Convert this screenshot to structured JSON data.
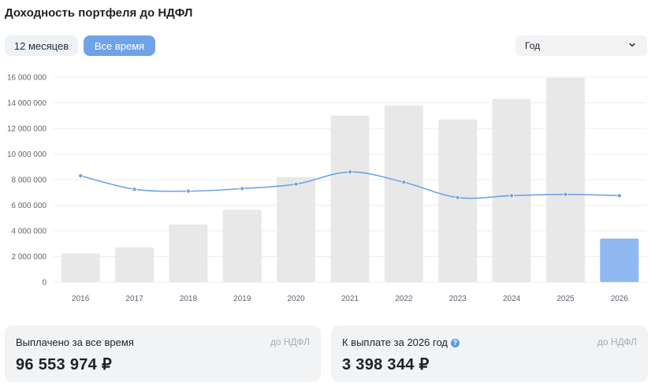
{
  "header": {
    "title": "Доходность портфеля до НДФЛ"
  },
  "period_tabs": [
    {
      "label": "12 месяцев",
      "active": false
    },
    {
      "label": "Все время",
      "active": true
    }
  ],
  "group_select": {
    "value": "Год",
    "icon": "chevron-down-icon"
  },
  "colors": {
    "bar": "#e8e8e8",
    "bar_highlight": "#8fb9f0",
    "line": "#6fa3e6",
    "chip_active": "#6fa3e6"
  },
  "chart_data": {
    "type": "bar",
    "title": "",
    "xlabel": "",
    "ylabel": "",
    "categories": [
      "2016",
      "2017",
      "2018",
      "2019",
      "2020",
      "2021",
      "2022",
      "2023",
      "2024",
      "2025",
      "2026"
    ],
    "series": [
      {
        "type": "bar",
        "values": [
          2250000,
          2700000,
          4500000,
          5650000,
          8200000,
          13000000,
          13800000,
          12700000,
          14300000,
          15950000,
          3398344
        ]
      },
      {
        "type": "line",
        "values": [
          8300000,
          7250000,
          7100000,
          7300000,
          7650000,
          8600000,
          7800000,
          6600000,
          6750000,
          6850000,
          6750000
        ]
      }
    ],
    "highlighted_category": "2026",
    "ylim": [
      0,
      16000000
    ],
    "y_ticks": [
      "0",
      "2 000 000",
      "4 000 000",
      "6 000 000",
      "8 000 000",
      "10 000 000",
      "12 000 000",
      "14 000 000",
      "16 000 000"
    ],
    "grid": true,
    "legend": "none"
  },
  "summary": {
    "paid": {
      "label": "Выплачено за все время",
      "note": "до НДФЛ",
      "value": "96 553 974 ₽"
    },
    "upcoming": {
      "label": "К выплате за 2026 год",
      "note": "до НДФЛ",
      "value": "3 398 344 ₽",
      "help_icon": "?"
    }
  }
}
